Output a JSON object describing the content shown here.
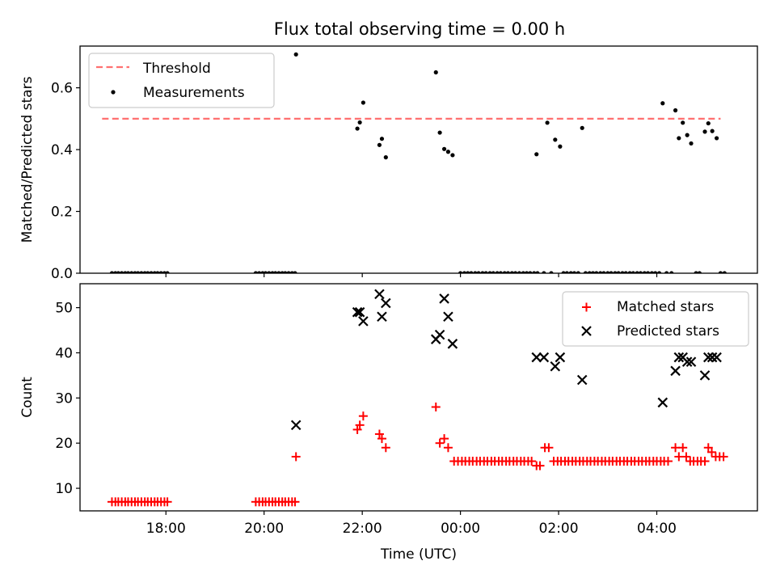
{
  "title": "Flux total observing time = 0.00 h",
  "chart_data": [
    {
      "panel": "top",
      "type": "scatter",
      "ylabel": "Matched/Predicted stars",
      "xlabel": "",
      "x_units": "hours since 00:00 UTC (negative = previous day)",
      "xlim": [
        -7.75,
        6.05
      ],
      "ylim": [
        0.0,
        0.735
      ],
      "yticks": [
        0.0,
        0.2,
        0.4,
        0.6
      ],
      "ytick_labels": [
        "0.0",
        "0.2",
        "0.4",
        "0.6"
      ],
      "xticks": [
        -6,
        -4,
        -2,
        0,
        2,
        4
      ],
      "legend": {
        "placement": "top-left"
      },
      "threshold": {
        "name": "Threshold",
        "value": 0.5,
        "x": [
          -7.3,
          5.3
        ],
        "color": "#ff7070"
      },
      "series": [
        {
          "name": "Measurements",
          "color": "#000000",
          "points": [
            [
              -7.1,
              0
            ],
            [
              -7.03,
              0
            ],
            [
              -6.97,
              0
            ],
            [
              -6.9,
              0
            ],
            [
              -6.83,
              0
            ],
            [
              -6.77,
              0
            ],
            [
              -6.7,
              0
            ],
            [
              -6.63,
              0
            ],
            [
              -6.57,
              0
            ],
            [
              -6.5,
              0
            ],
            [
              -6.43,
              0
            ],
            [
              -6.37,
              0
            ],
            [
              -6.3,
              0
            ],
            [
              -6.23,
              0
            ],
            [
              -6.17,
              0
            ],
            [
              -6.1,
              0
            ],
            [
              -6.03,
              0
            ],
            [
              -5.97,
              0
            ],
            [
              -4.17,
              0
            ],
            [
              -4.1,
              0
            ],
            [
              -4.03,
              0
            ],
            [
              -3.97,
              0
            ],
            [
              -3.9,
              0
            ],
            [
              -3.83,
              0
            ],
            [
              -3.77,
              0
            ],
            [
              -3.7,
              0
            ],
            [
              -3.63,
              0
            ],
            [
              -3.57,
              0
            ],
            [
              -3.5,
              0
            ],
            [
              -3.43,
              0
            ],
            [
              -3.37,
              0
            ],
            [
              -3.35,
              0.708
            ],
            [
              -2.1,
              0.468
            ],
            [
              -2.05,
              0.488
            ],
            [
              -1.98,
              0.552
            ],
            [
              -1.65,
              0.415
            ],
            [
              -1.6,
              0.435
            ],
            [
              -1.52,
              0.375
            ],
            [
              -0.5,
              0.65
            ],
            [
              -0.42,
              0.455
            ],
            [
              -0.33,
              0.402
            ],
            [
              -0.25,
              0.393
            ],
            [
              -0.16,
              0.382
            ],
            [
              0.0,
              0
            ],
            [
              0.08,
              0
            ],
            [
              0.15,
              0
            ],
            [
              0.22,
              0
            ],
            [
              0.3,
              0
            ],
            [
              0.37,
              0
            ],
            [
              0.45,
              0
            ],
            [
              0.52,
              0
            ],
            [
              0.6,
              0
            ],
            [
              0.67,
              0
            ],
            [
              0.75,
              0
            ],
            [
              0.82,
              0
            ],
            [
              0.9,
              0
            ],
            [
              0.97,
              0
            ],
            [
              1.05,
              0
            ],
            [
              1.12,
              0
            ],
            [
              1.2,
              0
            ],
            [
              1.28,
              0
            ],
            [
              1.35,
              0
            ],
            [
              1.42,
              0
            ],
            [
              1.5,
              0
            ],
            [
              1.57,
              0
            ],
            [
              1.55,
              0.385
            ],
            [
              1.7,
              0
            ],
            [
              1.77,
              0.487
            ],
            [
              1.85,
              0
            ],
            [
              1.93,
              0.432
            ],
            [
              2.03,
              0.41
            ],
            [
              2.1,
              0
            ],
            [
              2.17,
              0
            ],
            [
              2.25,
              0
            ],
            [
              2.32,
              0
            ],
            [
              2.4,
              0
            ],
            [
              2.48,
              0.47
            ],
            [
              2.55,
              0
            ],
            [
              2.63,
              0
            ],
            [
              2.7,
              0
            ],
            [
              2.77,
              0
            ],
            [
              2.85,
              0
            ],
            [
              2.92,
              0
            ],
            [
              3.0,
              0
            ],
            [
              3.07,
              0
            ],
            [
              3.15,
              0
            ],
            [
              3.22,
              0
            ],
            [
              3.3,
              0
            ],
            [
              3.37,
              0
            ],
            [
              3.45,
              0
            ],
            [
              3.52,
              0
            ],
            [
              3.6,
              0
            ],
            [
              3.67,
              0
            ],
            [
              3.75,
              0
            ],
            [
              3.82,
              0
            ],
            [
              3.9,
              0
            ],
            [
              3.97,
              0
            ],
            [
              4.05,
              0
            ],
            [
              4.2,
              0
            ],
            [
              4.3,
              0
            ],
            [
              4.12,
              0.55
            ],
            [
              4.38,
              0.527
            ],
            [
              4.45,
              0.437
            ],
            [
              4.53,
              0.487
            ],
            [
              4.62,
              0.447
            ],
            [
              4.7,
              0.42
            ],
            [
              4.8,
              0
            ],
            [
              4.87,
              0
            ],
            [
              4.98,
              0.458
            ],
            [
              5.05,
              0.485
            ],
            [
              5.13,
              0.46
            ],
            [
              5.22,
              0.437
            ],
            [
              5.3,
              0
            ],
            [
              5.38,
              0
            ]
          ]
        }
      ]
    },
    {
      "panel": "bottom",
      "type": "scatter",
      "ylabel": "Count",
      "xlabel": "Time (UTC)",
      "xlim": [
        -7.75,
        6.05
      ],
      "ylim": [
        5,
        55.3
      ],
      "yticks": [
        10,
        20,
        30,
        40,
        50
      ],
      "ytick_labels": [
        "10",
        "20",
        "30",
        "40",
        "50"
      ],
      "xticks": [
        -6,
        -4,
        -2,
        0,
        2,
        4
      ],
      "xtick_labels": [
        "18:00",
        "20:00",
        "22:00",
        "00:00",
        "02:00",
        "04:00"
      ],
      "legend": {
        "placement": "top-right"
      },
      "series": [
        {
          "name": "Matched stars",
          "marker": "plus",
          "color": "#ff0000",
          "points": [
            [
              -7.1,
              7
            ],
            [
              -7.03,
              7
            ],
            [
              -6.97,
              7
            ],
            [
              -6.9,
              7
            ],
            [
              -6.83,
              7
            ],
            [
              -6.77,
              7
            ],
            [
              -6.7,
              7
            ],
            [
              -6.63,
              7
            ],
            [
              -6.57,
              7
            ],
            [
              -6.5,
              7
            ],
            [
              -6.43,
              7
            ],
            [
              -6.37,
              7
            ],
            [
              -6.3,
              7
            ],
            [
              -6.23,
              7
            ],
            [
              -6.17,
              7
            ],
            [
              -6.1,
              7
            ],
            [
              -6.03,
              7
            ],
            [
              -5.97,
              7
            ],
            [
              -4.17,
              7
            ],
            [
              -4.1,
              7
            ],
            [
              -4.03,
              7
            ],
            [
              -3.97,
              7
            ],
            [
              -3.9,
              7
            ],
            [
              -3.83,
              7
            ],
            [
              -3.77,
              7
            ],
            [
              -3.7,
              7
            ],
            [
              -3.63,
              7
            ],
            [
              -3.57,
              7
            ],
            [
              -3.5,
              7
            ],
            [
              -3.43,
              7
            ],
            [
              -3.37,
              7
            ],
            [
              -3.35,
              17
            ],
            [
              -2.1,
              23
            ],
            [
              -2.05,
              24
            ],
            [
              -1.98,
              26
            ],
            [
              -1.65,
              22
            ],
            [
              -1.6,
              21
            ],
            [
              -1.52,
              19
            ],
            [
              -0.5,
              28
            ],
            [
              -0.42,
              20
            ],
            [
              -0.33,
              21
            ],
            [
              -0.25,
              19
            ],
            [
              -0.13,
              16
            ],
            [
              -0.05,
              16
            ],
            [
              0.03,
              16
            ],
            [
              0.1,
              16
            ],
            [
              0.18,
              16
            ],
            [
              0.25,
              16
            ],
            [
              0.33,
              16
            ],
            [
              0.4,
              16
            ],
            [
              0.48,
              16
            ],
            [
              0.55,
              16
            ],
            [
              0.63,
              16
            ],
            [
              0.7,
              16
            ],
            [
              0.78,
              16
            ],
            [
              0.85,
              16
            ],
            [
              0.93,
              16
            ],
            [
              1.0,
              16
            ],
            [
              1.08,
              16
            ],
            [
              1.15,
              16
            ],
            [
              1.23,
              16
            ],
            [
              1.3,
              16
            ],
            [
              1.38,
              16
            ],
            [
              1.45,
              16
            ],
            [
              1.55,
              15
            ],
            [
              1.62,
              15
            ],
            [
              1.72,
              19
            ],
            [
              1.8,
              19
            ],
            [
              1.9,
              16
            ],
            [
              1.98,
              16
            ],
            [
              2.05,
              16
            ],
            [
              2.13,
              16
            ],
            [
              2.2,
              16
            ],
            [
              2.28,
              16
            ],
            [
              2.35,
              16
            ],
            [
              2.43,
              16
            ],
            [
              2.5,
              16
            ],
            [
              2.58,
              16
            ],
            [
              2.65,
              16
            ],
            [
              2.73,
              16
            ],
            [
              2.8,
              16
            ],
            [
              2.88,
              16
            ],
            [
              2.95,
              16
            ],
            [
              3.03,
              16
            ],
            [
              3.1,
              16
            ],
            [
              3.18,
              16
            ],
            [
              3.25,
              16
            ],
            [
              3.33,
              16
            ],
            [
              3.4,
              16
            ],
            [
              3.48,
              16
            ],
            [
              3.55,
              16
            ],
            [
              3.63,
              16
            ],
            [
              3.7,
              16
            ],
            [
              3.78,
              16
            ],
            [
              3.85,
              16
            ],
            [
              3.93,
              16
            ],
            [
              4.0,
              16
            ],
            [
              4.08,
              16
            ],
            [
              4.15,
              16
            ],
            [
              4.23,
              16
            ],
            [
              4.38,
              19
            ],
            [
              4.45,
              17
            ],
            [
              4.53,
              19
            ],
            [
              4.6,
              17
            ],
            [
              4.68,
              16
            ],
            [
              4.75,
              16
            ],
            [
              4.83,
              16
            ],
            [
              4.9,
              16
            ],
            [
              4.98,
              16
            ],
            [
              5.05,
              19
            ],
            [
              5.12,
              18
            ],
            [
              5.2,
              17
            ],
            [
              5.28,
              17
            ],
            [
              5.36,
              17
            ]
          ]
        },
        {
          "name": "Predicted stars",
          "marker": "x",
          "color": "#000000",
          "points": [
            [
              -3.35,
              24
            ],
            [
              -2.1,
              49
            ],
            [
              -2.05,
              49
            ],
            [
              -1.98,
              47
            ],
            [
              -1.65,
              53
            ],
            [
              -1.6,
              48
            ],
            [
              -1.52,
              51
            ],
            [
              -0.5,
              43
            ],
            [
              -0.42,
              44
            ],
            [
              -0.33,
              52
            ],
            [
              -0.25,
              48
            ],
            [
              -0.16,
              42
            ],
            [
              1.55,
              39
            ],
            [
              1.7,
              39
            ],
            [
              1.93,
              37
            ],
            [
              2.03,
              39
            ],
            [
              2.48,
              34
            ],
            [
              4.12,
              29
            ],
            [
              4.38,
              36
            ],
            [
              4.45,
              39
            ],
            [
              4.53,
              39
            ],
            [
              4.62,
              38
            ],
            [
              4.7,
              38
            ],
            [
              4.98,
              35
            ],
            [
              5.05,
              39
            ],
            [
              5.13,
              39
            ],
            [
              5.22,
              39
            ]
          ]
        }
      ]
    }
  ]
}
